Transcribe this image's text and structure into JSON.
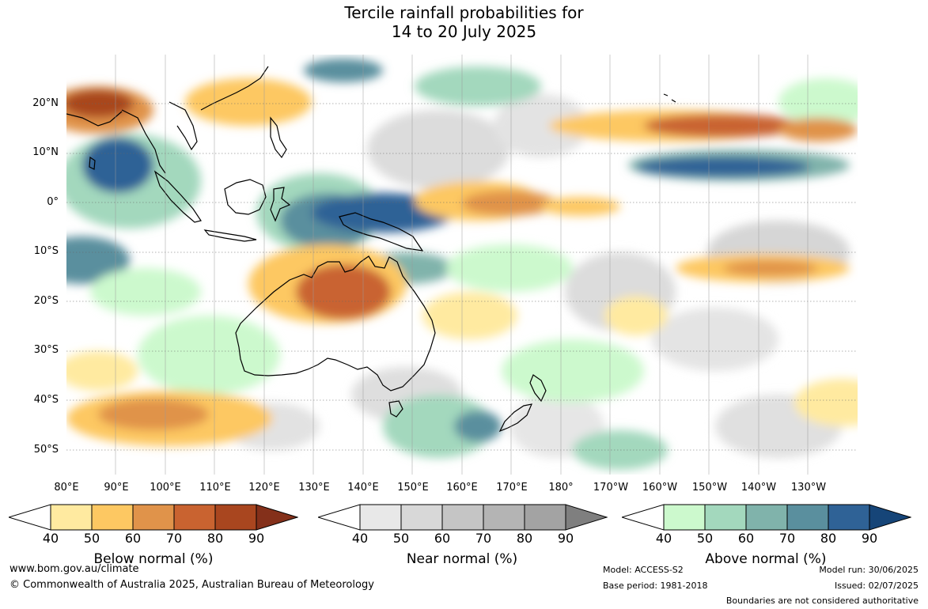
{
  "title": {
    "line1": "Tercile rainfall probabilities for",
    "line2": "14 to 20 July 2025"
  },
  "lat_labels": [
    "20°N",
    "10°N",
    "0°",
    "10°S",
    "20°S",
    "30°S",
    "40°S",
    "50°S"
  ],
  "lon_labels": [
    "80°E",
    "90°E",
    "100°E",
    "110°E",
    "120°E",
    "130°E",
    "140°E",
    "150°E",
    "160°E",
    "170°E",
    "180°",
    "170°W",
    "160°W",
    "150°W",
    "140°W",
    "130°W"
  ],
  "legends": [
    {
      "title": "Below normal (%)",
      "ticks": [
        "40",
        "50",
        "60",
        "70",
        "80",
        "90"
      ],
      "colors": [
        "#ffeaa0",
        "#fdc862",
        "#e0934a",
        "#c96330",
        "#a9461f",
        "#84301a"
      ]
    },
    {
      "title": "Near normal (%)",
      "ticks": [
        "40",
        "50",
        "60",
        "70",
        "80",
        "90"
      ],
      "colors": [
        "#e8e8e8",
        "#d8d8d8",
        "#c5c5c5",
        "#b4b4b4",
        "#a3a3a3",
        "#7f7f7f"
      ]
    },
    {
      "title": "Above normal (%)",
      "ticks": [
        "40",
        "50",
        "60",
        "70",
        "80",
        "90"
      ],
      "colors": [
        "#ccf9cd",
        "#a3d8bd",
        "#80b3ab",
        "#5a8f9e",
        "#2f6296",
        "#164578"
      ]
    }
  ],
  "footer": {
    "url": "www.bom.gov.au/climate",
    "copyright": "© Commonwealth of Australia 2025, Australian Bureau of Meteorology",
    "model": "Model: ACCESS-S2",
    "base_period": "Base period: 1981-2018",
    "model_run": "Model run: 30/06/2025",
    "issued": "Issued: 02/07/2025",
    "disclaimer": "Boundaries are not considered authoritative"
  }
}
